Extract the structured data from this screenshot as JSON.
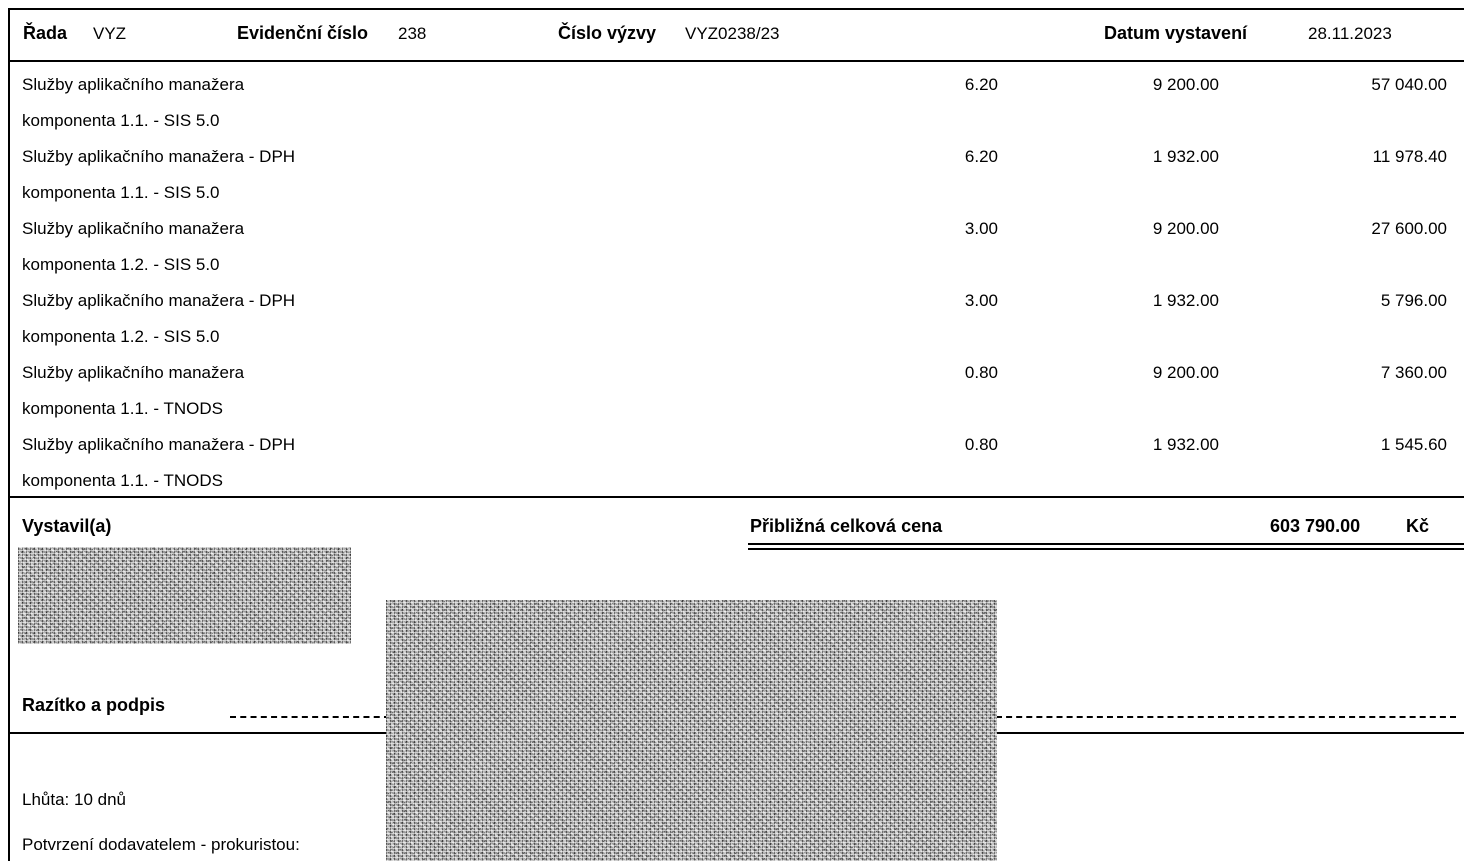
{
  "header": {
    "rada_label": "Řada",
    "rada_value": "VYZ",
    "evid_label": "Evidenční číslo",
    "evid_value": "238",
    "vyzva_label": "Číslo výzvy",
    "vyzva_value": "VYZ0238/23",
    "datum_label": "Datum vystavení",
    "datum_value": "28.11.2023"
  },
  "items": [
    {
      "desc": "Služby aplikačního manažera",
      "qty": "6.20",
      "price": "9 200.00",
      "total": "57 040.00"
    },
    {
      "desc": "komponenta 1.1. - SIS 5.0",
      "qty": "",
      "price": "",
      "total": ""
    },
    {
      "desc": "Služby aplikačního manažera - DPH",
      "qty": "6.20",
      "price": "1 932.00",
      "total": "11 978.40"
    },
    {
      "desc": "komponenta 1.1. - SIS 5.0",
      "qty": "",
      "price": "",
      "total": ""
    },
    {
      "desc": "Služby aplikačního manažera",
      "qty": "3.00",
      "price": "9 200.00",
      "total": "27 600.00"
    },
    {
      "desc": "komponenta 1.2. - SIS 5.0",
      "qty": "",
      "price": "",
      "total": ""
    },
    {
      "desc": "Služby aplikačního manažera - DPH",
      "qty": "3.00",
      "price": "1 932.00",
      "total": "5 796.00"
    },
    {
      "desc": "komponenta 1.2. - SIS 5.0",
      "qty": "",
      "price": "",
      "total": ""
    },
    {
      "desc": "Služby aplikačního manažera",
      "qty": "0.80",
      "price": "9 200.00",
      "total": "7 360.00"
    },
    {
      "desc": "komponenta 1.1. - TNODS",
      "qty": "",
      "price": "",
      "total": ""
    },
    {
      "desc": "Služby aplikačního manažera - DPH",
      "qty": "0.80",
      "price": "1 932.00",
      "total": "1 545.60"
    },
    {
      "desc": "komponenta 1.1. - TNODS",
      "qty": "",
      "price": "",
      "total": ""
    }
  ],
  "footer": {
    "vystavil_label": "Vystavil(a)",
    "total_label": "Přibližná celková cena",
    "total_value": "603 790.00",
    "currency": "Kč",
    "stamp_label": "Razítko a podpis",
    "lhuta": "Lhůta: 10 dnů",
    "potvrzeni": "Potvrzení dodavatelem - prokuristou:"
  }
}
